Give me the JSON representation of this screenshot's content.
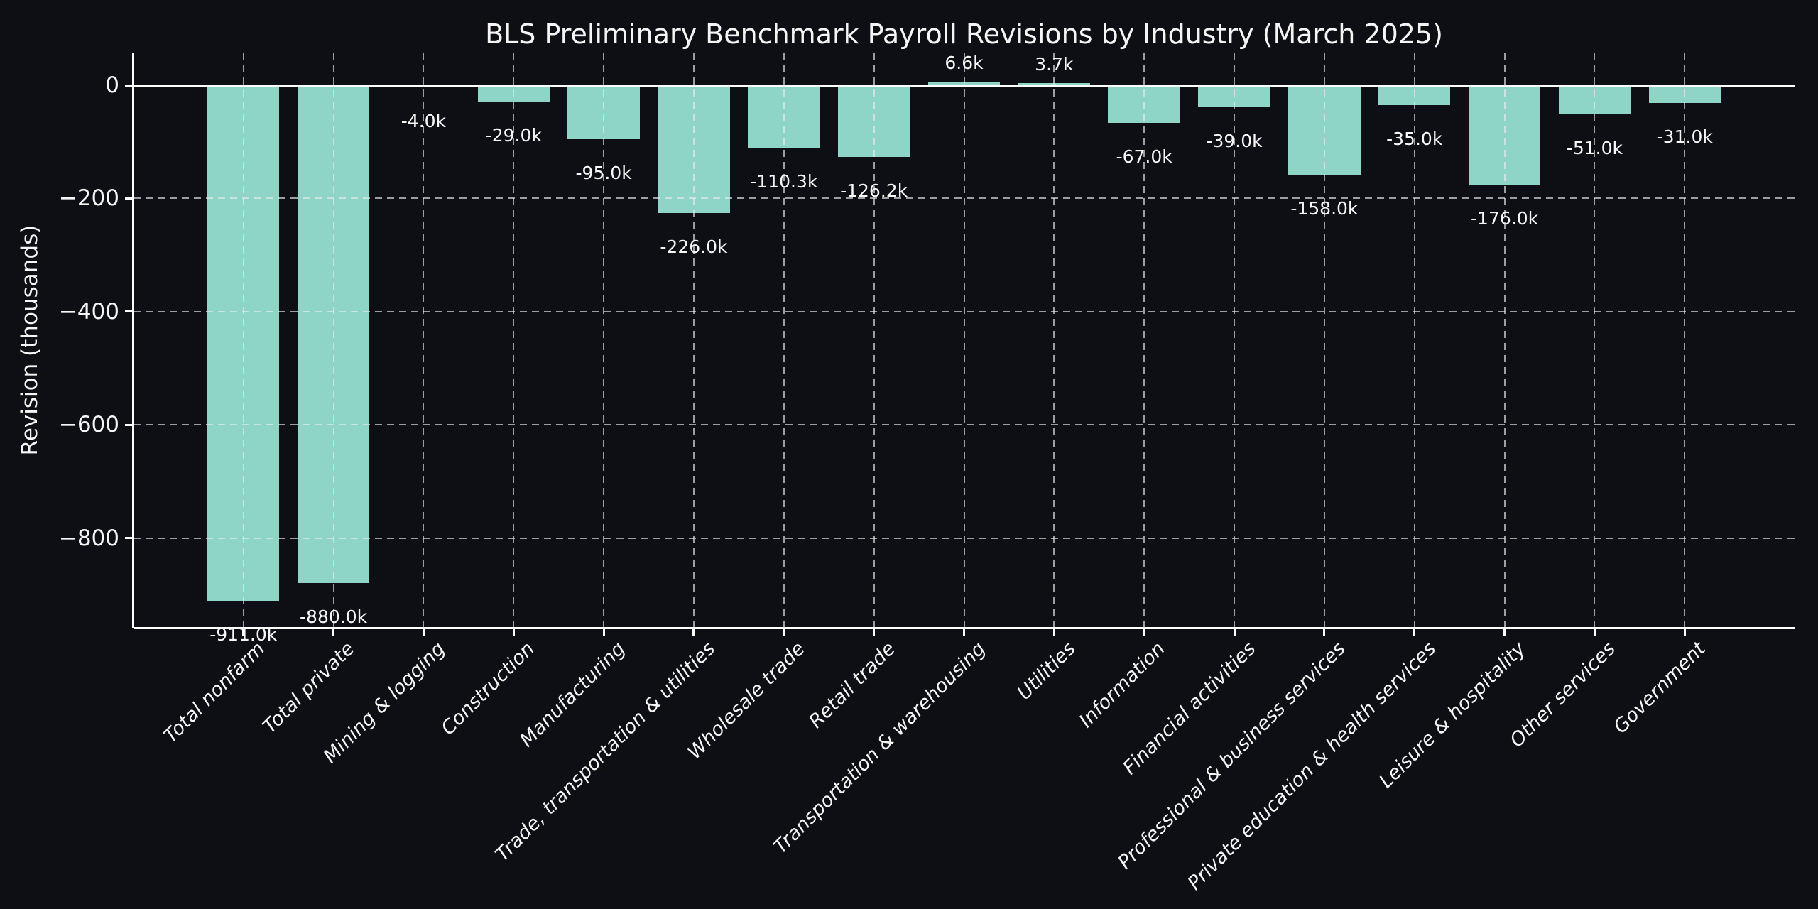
{
  "chart_data": {
    "type": "bar",
    "title": "BLS Preliminary Benchmark Payroll Revisions by Industry (March 2025)",
    "xlabel": "",
    "ylabel": "Revision (thousands)",
    "categories": [
      "Total nonfarm",
      "Total private",
      "Mining & logging",
      "Construction",
      "Manufacturing",
      "Trade, transportation & utilities",
      "Wholesale trade",
      "Retail trade",
      "Transportation & warehousing",
      "Utilities",
      "Information",
      "Financial activities",
      "Professional & business services",
      "Private education & health services",
      "Leisure & hospitality",
      "Other services",
      "Government"
    ],
    "values": [
      -911.0,
      -880.0,
      -4.0,
      -29.0,
      -95.0,
      -226.0,
      -110.3,
      -126.2,
      6.6,
      3.7,
      -67.0,
      -39.0,
      -158.0,
      -35.0,
      -176.0,
      -51.0,
      -31.0
    ],
    "value_labels": [
      "-911.0k",
      "-880.0k",
      "-4.0k",
      "-29.0k",
      "-95.0k",
      "-226.0k",
      "-110.3k",
      "-126.2k",
      "6.6k",
      "3.7k",
      "-67.0k",
      "-39.0k",
      "-158.0k",
      "-35.0k",
      "-176.0k",
      "-51.0k",
      "-31.0k"
    ],
    "y_ticks": [
      {
        "label": "0",
        "value": 0
      },
      {
        "label": "−200",
        "value": -200
      },
      {
        "label": "−400",
        "value": -400
      },
      {
        "label": "−600",
        "value": -600
      },
      {
        "label": "−800",
        "value": -800
      }
    ],
    "ylim": [
      -957,
      56
    ],
    "grid": "dashed horizontal and vertical gridlines",
    "legend": "none",
    "zero_line": true,
    "colors": {
      "bar": "#8fd5c7",
      "background": "#0e0f15",
      "text": "#f5f5f5",
      "grid": "#ebebeb",
      "spine": "#ffffff"
    }
  }
}
